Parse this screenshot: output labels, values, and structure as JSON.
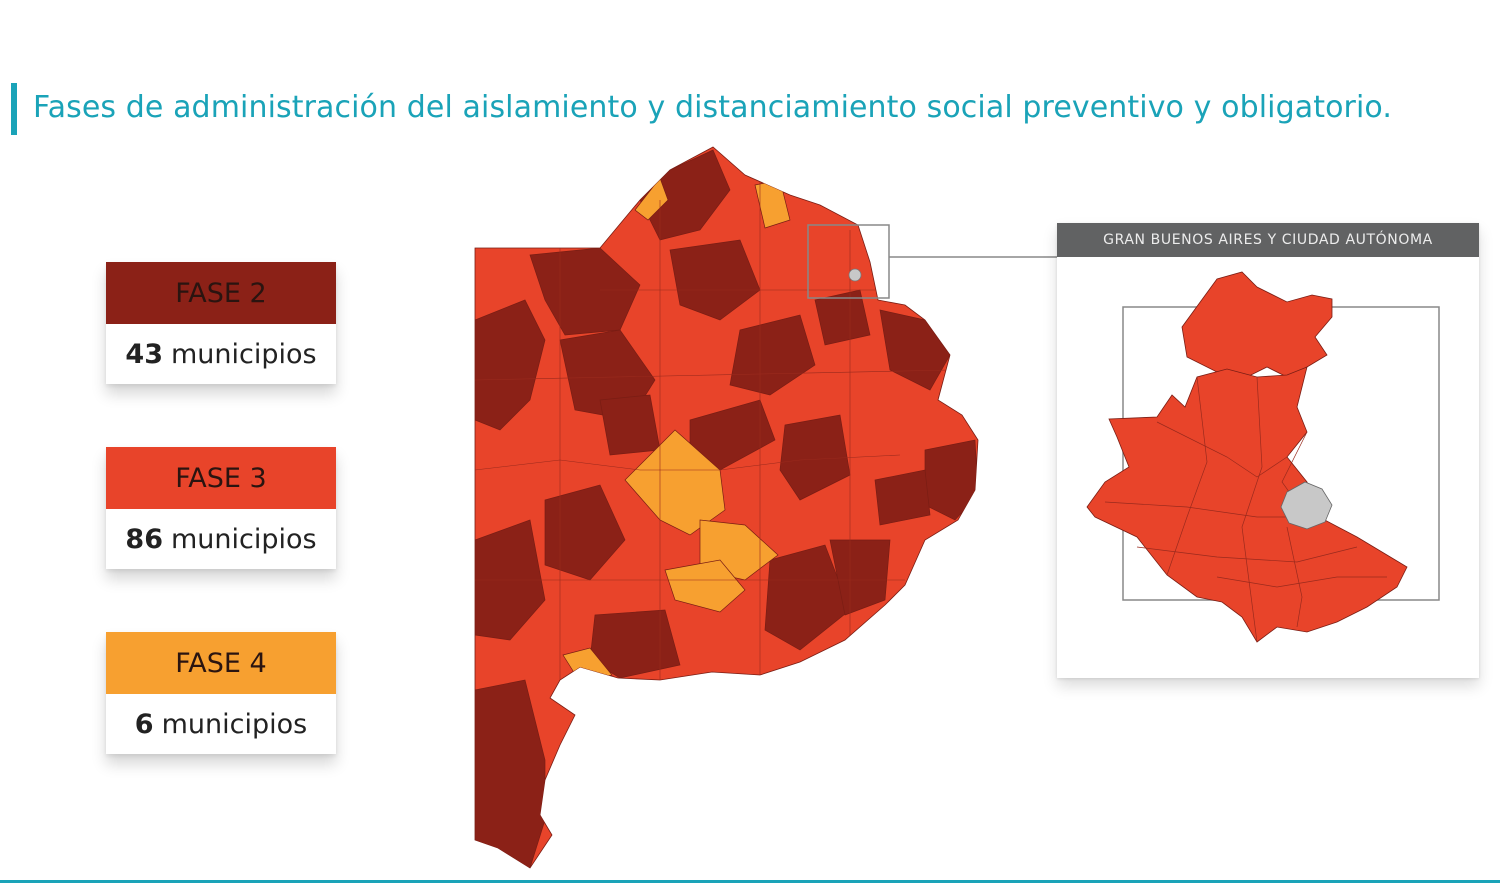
{
  "title": "Fases de administración del aislamiento y distanciamiento social preventivo y obligatorio.",
  "colors": {
    "fase2": "#8b2117",
    "fase3": "#e8442a",
    "fase4": "#f7a030",
    "caba": "#c8c8c8",
    "accent": "#1aa3b8",
    "inset_header": "#616263"
  },
  "legend": [
    {
      "label": "FASE 2",
      "count": "43",
      "unit": "municipios"
    },
    {
      "label": "FASE 3",
      "count": "86",
      "unit": "municipios"
    },
    {
      "label": "FASE 4",
      "count": "6",
      "unit": "municipios"
    }
  ],
  "inset": {
    "header": "GRAN BUENOS AIRES Y CIUDAD AUTÓNOMA"
  }
}
